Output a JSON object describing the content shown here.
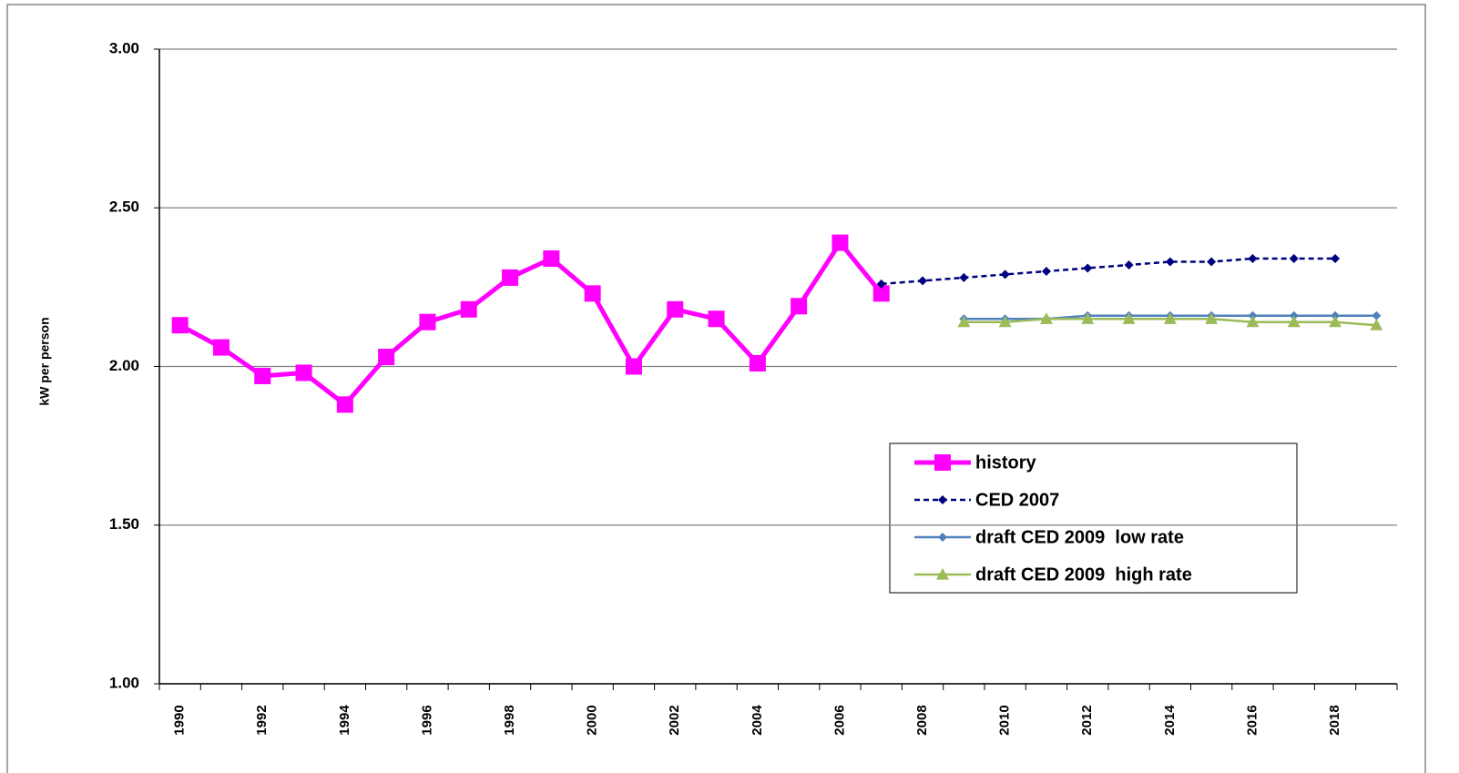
{
  "chart_data": {
    "type": "line",
    "y_label": "kW per person",
    "categories": [
      "1990",
      null,
      "1992",
      null,
      "1994",
      null,
      "1996",
      null,
      "1998",
      null,
      "2000",
      null,
      "2002",
      null,
      "2004",
      null,
      "2006",
      null,
      "2008",
      null,
      "2010",
      null,
      "2012",
      null,
      "2014",
      null,
      "2016",
      null,
      "2018",
      null
    ],
    "series": [
      {
        "name": "history",
        "color": "#ff00ff",
        "marker": "square",
        "dashed": false,
        "values": [
          2.13,
          2.06,
          1.97,
          1.98,
          1.88,
          2.03,
          2.14,
          2.18,
          2.28,
          2.34,
          2.23,
          2.0,
          2.18,
          2.15,
          2.01,
          2.19,
          2.39,
          2.23,
          null,
          null,
          null,
          null,
          null,
          null,
          null,
          null,
          null,
          null,
          null,
          null
        ]
      },
      {
        "name": "CED 2007",
        "color": "#000080",
        "marker": "diamond",
        "dashed": true,
        "values": [
          null,
          null,
          null,
          null,
          null,
          null,
          null,
          null,
          null,
          null,
          null,
          null,
          null,
          null,
          null,
          null,
          null,
          2.26,
          2.27,
          2.28,
          2.29,
          2.3,
          2.31,
          2.32,
          2.33,
          2.33,
          2.34,
          2.34,
          2.34,
          null
        ]
      },
      {
        "name": "draft CED 2009  low rate",
        "color": "#4f81bd",
        "marker": "diamond",
        "dashed": false,
        "values": [
          null,
          null,
          null,
          null,
          null,
          null,
          null,
          null,
          null,
          null,
          null,
          null,
          null,
          null,
          null,
          null,
          null,
          null,
          null,
          2.15,
          2.15,
          2.15,
          2.16,
          2.16,
          2.16,
          2.16,
          2.16,
          2.16,
          2.16,
          2.16
        ]
      },
      {
        "name": "draft CED 2009  high rate",
        "color": "#9bbb59",
        "marker": "triangle",
        "dashed": false,
        "values": [
          null,
          null,
          null,
          null,
          null,
          null,
          null,
          null,
          null,
          null,
          null,
          null,
          null,
          null,
          null,
          null,
          null,
          null,
          null,
          2.14,
          2.14,
          2.15,
          2.15,
          2.15,
          2.15,
          2.15,
          2.14,
          2.14,
          2.14,
          2.13
        ]
      }
    ],
    "ylim": [
      1,
      3
    ],
    "yticks": [
      {
        "value": 1,
        "label": "1.00"
      },
      {
        "value": 1.5,
        "label": "1.50"
      },
      {
        "value": 2,
        "label": "2.00"
      },
      {
        "value": 2.5,
        "label": "2.50"
      },
      {
        "value": 3,
        "label": "3.00"
      }
    ],
    "grid": true
  }
}
